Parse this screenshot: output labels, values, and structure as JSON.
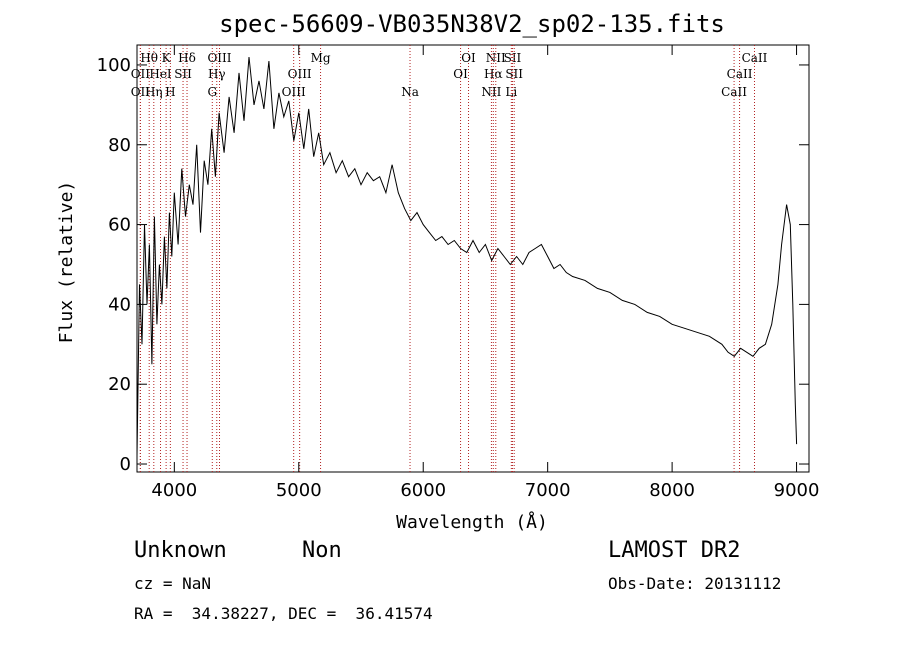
{
  "chart_data": {
    "type": "line",
    "title": "spec-56609-VB035N38V2_sp02-135.fits",
    "xlabel": "Wavelength (Å)",
    "ylabel": "Flux (relative)",
    "xlim": [
      3700,
      9100
    ],
    "ylim": [
      -2,
      105
    ],
    "xticks": [
      4000,
      5000,
      6000,
      7000,
      8000,
      9000
    ],
    "yticks": [
      0,
      20,
      40,
      60,
      80,
      100
    ],
    "xtick_labels": [
      "4000",
      "5000",
      "6000",
      "7000",
      "8000",
      "9000"
    ],
    "ytick_labels": [
      "0",
      "20",
      "40",
      "60",
      "80",
      "100"
    ],
    "grid": false,
    "line_color": "#000000",
    "marker_color": "#b22222",
    "spectrum": {
      "x": [
        3700,
        3720,
        3740,
        3760,
        3780,
        3800,
        3820,
        3840,
        3860,
        3880,
        3900,
        3920,
        3940,
        3960,
        3980,
        4000,
        4030,
        4060,
        4090,
        4120,
        4150,
        4180,
        4210,
        4240,
        4270,
        4300,
        4330,
        4360,
        4400,
        4440,
        4480,
        4520,
        4560,
        4600,
        4640,
        4680,
        4720,
        4760,
        4800,
        4840,
        4880,
        4920,
        4960,
        5000,
        5040,
        5080,
        5120,
        5160,
        5200,
        5250,
        5300,
        5350,
        5400,
        5450,
        5500,
        5550,
        5600,
        5650,
        5700,
        5750,
        5800,
        5850,
        5900,
        5950,
        6000,
        6050,
        6100,
        6150,
        6200,
        6250,
        6300,
        6350,
        6400,
        6450,
        6500,
        6550,
        6600,
        6650,
        6700,
        6750,
        6800,
        6850,
        6900,
        6950,
        7000,
        7050,
        7100,
        7150,
        7200,
        7300,
        7400,
        7500,
        7600,
        7700,
        7800,
        7900,
        8000,
        8100,
        8200,
        8300,
        8400,
        8450,
        8500,
        8550,
        8600,
        8650,
        8700,
        8750,
        8800,
        8850,
        8880,
        8920,
        8950,
        8970,
        8990,
        9000
      ],
      "y": [
        2,
        45,
        30,
        60,
        40,
        55,
        25,
        62,
        35,
        50,
        40,
        57,
        44,
        63,
        52,
        68,
        55,
        74,
        62,
        70,
        65,
        80,
        58,
        76,
        70,
        84,
        72,
        88,
        78,
        92,
        83,
        98,
        86,
        102,
        90,
        96,
        89,
        101,
        84,
        93,
        87,
        91,
        81,
        88,
        79,
        89,
        77,
        83,
        75,
        78,
        73,
        76,
        72,
        74,
        70,
        73,
        71,
        72,
        68,
        75,
        68,
        64,
        61,
        63,
        60,
        58,
        56,
        57,
        55,
        56,
        54,
        53,
        56,
        53,
        55,
        51,
        54,
        52,
        50,
        52,
        50,
        53,
        54,
        55,
        52,
        49,
        50,
        48,
        47,
        46,
        44,
        43,
        41,
        40,
        38,
        37,
        35,
        34,
        33,
        32,
        30,
        28,
        27,
        29,
        28,
        27,
        29,
        30,
        35,
        45,
        55,
        65,
        60,
        40,
        15,
        5
      ]
    },
    "line_markers": [
      {
        "label": "Hθ",
        "x": 3798,
        "row": 1
      },
      {
        "label": "OII",
        "x": 3727,
        "row": 2
      },
      {
        "label": "OII",
        "x": 3727,
        "row": 3
      },
      {
        "label": "K",
        "x": 3934,
        "row": 1
      },
      {
        "label": "HeI",
        "x": 3889,
        "row": 2
      },
      {
        "label": "Hη",
        "x": 3835,
        "row": 3
      },
      {
        "label": "SII",
        "x": 4070,
        "row": 2
      },
      {
        "label": "H",
        "x": 3968,
        "row": 3
      },
      {
        "label": "Hδ",
        "x": 4102,
        "row": 1
      },
      {
        "label": "OIII",
        "x": 4363,
        "row": 1
      },
      {
        "label": "Hγ",
        "x": 4341,
        "row": 2
      },
      {
        "label": "G",
        "x": 4305,
        "row": 3
      },
      {
        "label": "Mg",
        "x": 5175,
        "row": 1
      },
      {
        "label": "OIII",
        "x": 5007,
        "row": 2
      },
      {
        "label": "OIII",
        "x": 4959,
        "row": 3
      },
      {
        "label": "Na",
        "x": 5894,
        "row": 3
      },
      {
        "label": "OI",
        "x": 6364,
        "row": 1
      },
      {
        "label": "OI",
        "x": 6300,
        "row": 2
      },
      {
        "label": "NII",
        "x": 6583,
        "row": 1
      },
      {
        "label": "SII",
        "x": 6717,
        "row": 1
      },
      {
        "label": "Hα",
        "x": 6563,
        "row": 2
      },
      {
        "label": "SII",
        "x": 6731,
        "row": 2
      },
      {
        "label": "NII",
        "x": 6548,
        "row": 3
      },
      {
        "label": "Li",
        "x": 6708,
        "row": 3
      },
      {
        "label": "CaII",
        "x": 8662,
        "row": 1
      },
      {
        "label": "CaII",
        "x": 8542,
        "row": 2
      },
      {
        "label": "CaII",
        "x": 8498,
        "row": 3
      }
    ]
  },
  "info": {
    "class_label": "Unknown",
    "subclass_label": "Non",
    "cz": "cz = NaN",
    "radec": "RA =  34.38227, DEC =  36.41574",
    "survey": "LAMOST DR2",
    "obs_date": "Obs-Date: 20131112"
  }
}
